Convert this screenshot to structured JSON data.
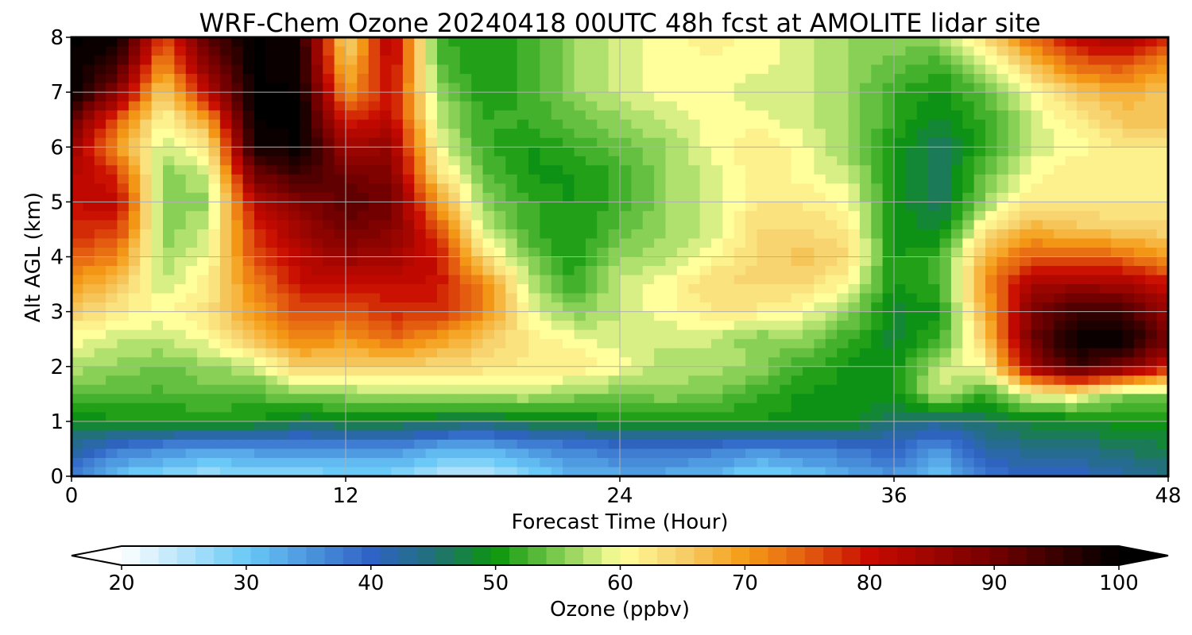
{
  "chart_data": {
    "type": "heatmap",
    "title": "WRF-Chem Ozone  20240418 00UTC 48h fcst at AMOLITE lidar site",
    "xlabel": "Forecast Time (Hour)",
    "ylabel": "Alt AGL (km)",
    "xlim": [
      0,
      48
    ],
    "ylim": [
      0,
      8
    ],
    "xticks": [
      0,
      12,
      24,
      36,
      48
    ],
    "yticks": [
      0,
      1,
      2,
      3,
      4,
      5,
      6,
      7,
      8
    ],
    "grid": true,
    "x": [
      0,
      2,
      4,
      6,
      8,
      10,
      12,
      14,
      16,
      18,
      20,
      22,
      24,
      26,
      28,
      30,
      32,
      34,
      36,
      38,
      40,
      42,
      44,
      46,
      48
    ],
    "y": [
      0,
      0.5,
      1,
      1.5,
      2,
      2.5,
      3,
      3.5,
      4,
      4.5,
      5,
      5.5,
      6,
      6.5,
      7,
      7.5,
      8
    ],
    "z": [
      [
        38,
        30,
        28,
        26,
        28,
        28,
        28,
        28,
        25,
        24,
        28,
        32,
        33,
        33,
        32,
        28,
        30,
        33,
        35,
        30,
        38,
        40,
        40,
        42,
        44
      ],
      [
        43,
        38,
        36,
        34,
        35,
        35,
        36,
        36,
        33,
        32,
        35,
        37,
        38,
        38,
        38,
        36,
        37,
        38,
        40,
        35,
        42,
        44,
        44,
        46,
        47
      ],
      [
        48,
        50,
        50,
        50,
        50,
        47,
        48,
        48,
        47,
        46,
        48,
        48,
        50,
        50,
        50,
        50,
        50,
        50,
        45,
        44,
        46,
        48,
        48,
        50,
        50
      ],
      [
        54,
        53,
        53,
        54,
        53,
        56,
        56,
        57,
        57,
        58,
        58,
        56,
        55,
        56,
        55,
        52,
        50,
        50,
        50,
        58,
        52,
        60,
        62,
        55,
        55
      ],
      [
        57,
        56,
        54,
        56,
        58,
        65,
        65,
        64,
        64,
        63,
        62,
        62,
        60,
        57,
        57,
        56,
        52,
        50,
        49,
        58,
        60,
        85,
        95,
        90,
        80
      ],
      [
        60,
        58,
        58,
        60,
        66,
        72,
        70,
        74,
        70,
        66,
        62,
        60,
        58,
        58,
        58,
        55,
        56,
        52,
        48,
        52,
        65,
        90,
        100,
        100,
        90
      ],
      [
        65,
        62,
        60,
        63,
        70,
        76,
        75,
        78,
        78,
        72,
        60,
        55,
        58,
        60,
        62,
        62,
        60,
        56,
        48,
        50,
        68,
        88,
        95,
        95,
        85
      ],
      [
        70,
        66,
        58,
        62,
        72,
        80,
        80,
        80,
        80,
        72,
        58,
        52,
        58,
        60,
        64,
        64,
        64,
        60,
        50,
        52,
        70,
        84,
        85,
        84,
        80
      ],
      [
        75,
        72,
        56,
        60,
        76,
        82,
        86,
        85,
        80,
        64,
        55,
        50,
        56,
        57,
        60,
        64,
        66,
        64,
        50,
        52,
        68,
        75,
        75,
        74,
        70
      ],
      [
        78,
        78,
        55,
        58,
        78,
        85,
        90,
        88,
        76,
        58,
        52,
        50,
        54,
        56,
        58,
        64,
        64,
        62,
        50,
        48,
        62,
        68,
        66,
        65,
        64
      ],
      [
        80,
        82,
        55,
        56,
        82,
        88,
        92,
        90,
        70,
        56,
        52,
        50,
        52,
        56,
        58,
        62,
        62,
        60,
        50,
        46,
        56,
        62,
        62,
        62,
        62
      ],
      [
        82,
        78,
        55,
        58,
        90,
        95,
        90,
        88,
        64,
        54,
        50,
        50,
        52,
        56,
        58,
        62,
        60,
        58,
        50,
        46,
        54,
        60,
        62,
        62,
        62
      ],
      [
        86,
        70,
        58,
        62,
        98,
        100,
        85,
        86,
        60,
        52,
        50,
        52,
        54,
        56,
        60,
        62,
        60,
        56,
        50,
        46,
        52,
        58,
        60,
        62,
        62
      ],
      [
        92,
        75,
        60,
        70,
        100,
        100,
        78,
        82,
        58,
        52,
        52,
        54,
        56,
        58,
        60,
        60,
        58,
        56,
        52,
        48,
        52,
        58,
        62,
        66,
        66
      ],
      [
        100,
        88,
        64,
        82,
        100,
        100,
        70,
        80,
        56,
        50,
        52,
        56,
        58,
        60,
        60,
        58,
        58,
        56,
        52,
        50,
        54,
        60,
        66,
        68,
        66
      ],
      [
        100,
        95,
        70,
        88,
        100,
        98,
        66,
        82,
        54,
        50,
        52,
        56,
        58,
        60,
        60,
        60,
        58,
        56,
        54,
        52,
        58,
        66,
        74,
        76,
        70
      ],
      [
        100,
        100,
        76,
        92,
        100,
        98,
        62,
        84,
        52,
        50,
        52,
        56,
        58,
        60,
        62,
        60,
        58,
        56,
        56,
        56,
        64,
        74,
        82,
        84,
        78
      ]
    ],
    "colorbar": {
      "label": "Ozone  (ppbv)",
      "min": 20,
      "max": 100,
      "extend": "both",
      "ticks": [
        20,
        30,
        40,
        50,
        60,
        70,
        80,
        90,
        100
      ],
      "stops": [
        {
          "v": 20,
          "c": "#ffffff"
        },
        {
          "v": 30,
          "c": "#6ac9f7"
        },
        {
          "v": 40,
          "c": "#2f63c5"
        },
        {
          "v": 45,
          "c": "#22707a"
        },
        {
          "v": 50,
          "c": "#0b960b"
        },
        {
          "v": 55,
          "c": "#7ccb4e"
        },
        {
          "v": 60,
          "c": "#ffff9c"
        },
        {
          "v": 65,
          "c": "#f6cf6a"
        },
        {
          "v": 70,
          "c": "#f59c16"
        },
        {
          "v": 75,
          "c": "#e35c10"
        },
        {
          "v": 80,
          "c": "#c80a00"
        },
        {
          "v": 90,
          "c": "#720000"
        },
        {
          "v": 100,
          "c": "#000000"
        }
      ]
    }
  }
}
